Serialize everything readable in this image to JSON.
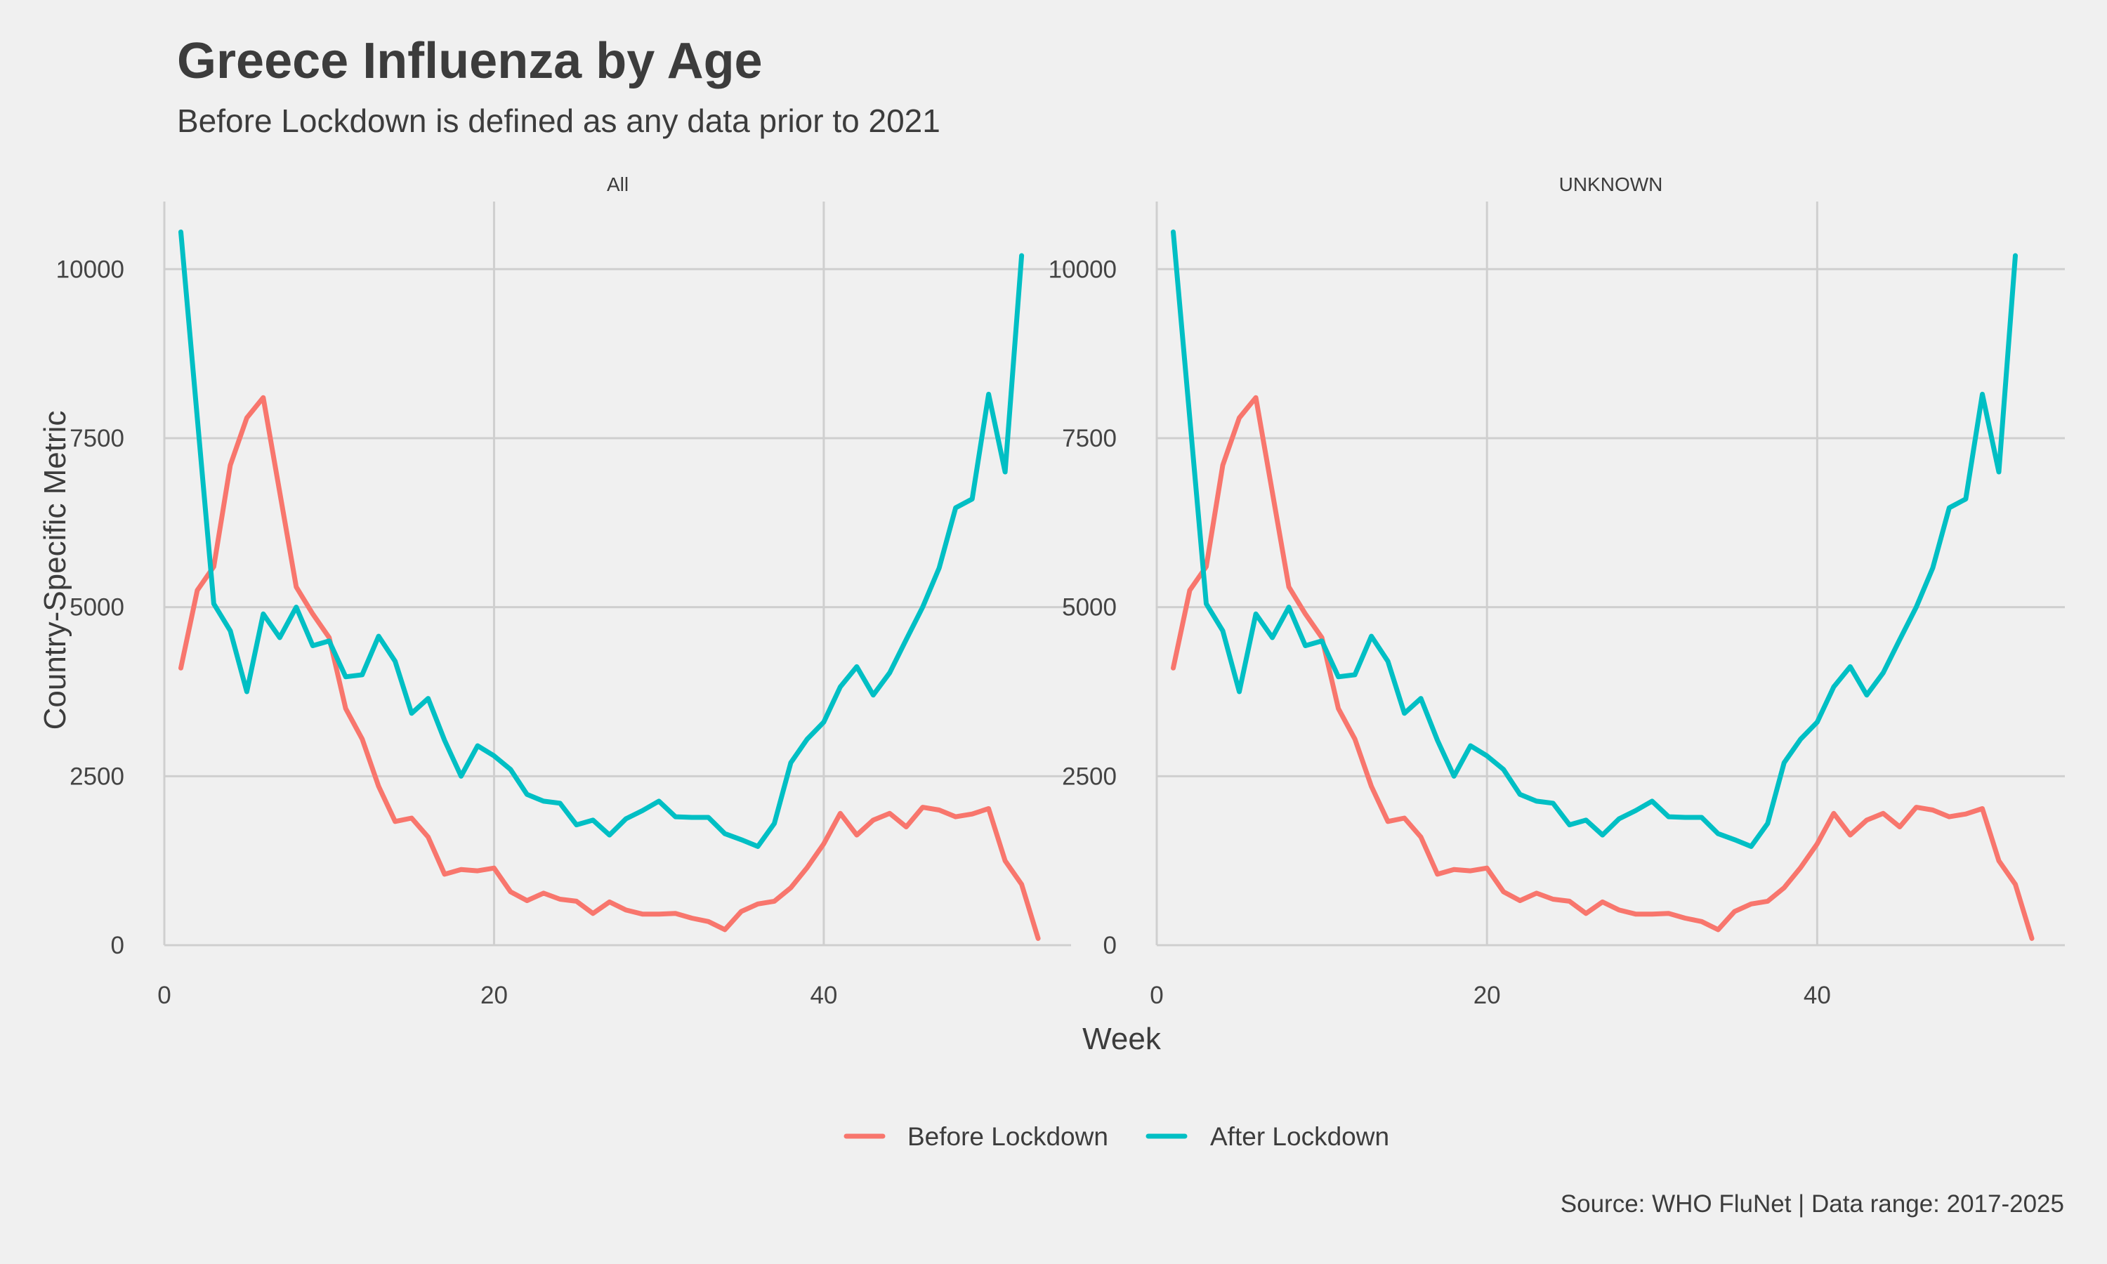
{
  "title": "Greece Influenza by Age",
  "subtitle": "Before Lockdown is defined as any data prior to 2021",
  "caption": "Source: WHO FluNet | Data range: 2017-2025",
  "colors": {
    "before": "#F8766D",
    "after": "#00BFC4",
    "grid": "#cfcfcf",
    "background": "#f0f0f0"
  },
  "chart_data": {
    "type": "line",
    "xlabel": "Week",
    "ylabel": "Country-Specific Metric",
    "xlim": [
      0,
      55
    ],
    "ylim": [
      0,
      11000
    ],
    "x_ticks": [
      0,
      20,
      40
    ],
    "y_ticks": [
      0,
      2500,
      5000,
      7500,
      10000
    ],
    "legend_position": "bottom",
    "legend": [
      "Before Lockdown",
      "After Lockdown"
    ],
    "panels": [
      {
        "label": "All",
        "series": [
          {
            "name": "Before Lockdown",
            "color": "#F8766D",
            "x": [
              1,
              2,
              3,
              4,
              5,
              6,
              7,
              8,
              9,
              10,
              11,
              12,
              13,
              14,
              15,
              16,
              17,
              18,
              19,
              20,
              21,
              22,
              23,
              24,
              25,
              26,
              27,
              28,
              29,
              30,
              31,
              32,
              33,
              34,
              35,
              36,
              37,
              38,
              39,
              40,
              41,
              42,
              43,
              44,
              45,
              46,
              47,
              48,
              49,
              50,
              51,
              52,
              53
            ],
            "values": [
              4100,
              5250,
              5600,
              7100,
              7800,
              8100,
              6700,
              5300,
              4900,
              4550,
              3500,
              3050,
              2350,
              1830,
              1880,
              1600,
              1050,
              1120,
              1100,
              1140,
              790,
              660,
              770,
              680,
              650,
              470,
              640,
              520,
              460,
              460,
              470,
              400,
              350,
              230,
              500,
              610,
              650,
              850,
              1150,
              1500,
              1950,
              1630,
              1850,
              1950,
              1750,
              2040,
              2000,
              1900,
              1940,
              2020,
              1250,
              900,
              100
            ]
          },
          {
            "name": "After Lockdown",
            "color": "#00BFC4",
            "x": [
              1,
              2,
              3,
              4,
              5,
              6,
              7,
              8,
              9,
              10,
              11,
              12,
              13,
              14,
              15,
              16,
              17,
              18,
              19,
              20,
              21,
              22,
              23,
              24,
              25,
              26,
              27,
              28,
              29,
              30,
              31,
              32,
              33,
              34,
              35,
              36,
              37,
              38,
              39,
              40,
              41,
              42,
              43,
              44,
              45,
              46,
              47,
              48,
              49,
              50,
              51,
              52
            ],
            "values": [
              10550,
              7800,
              5050,
              4650,
              3750,
              4900,
              4550,
              5000,
              4430,
              4500,
              3970,
              4000,
              4570,
              4200,
              3430,
              3650,
              3030,
              2500,
              2950,
              2800,
              2600,
              2230,
              2130,
              2100,
              1780,
              1850,
              1630,
              1870,
              1990,
              2130,
              1900,
              1890,
              1890,
              1650,
              1560,
              1460,
              1800,
              2700,
              3050,
              3300,
              3820,
              4120,
              3700,
              4030,
              4520,
              5000,
              5580,
              6470,
              6600,
              8150,
              7000,
              10200
            ]
          }
        ]
      },
      {
        "label": "UNKNOWN",
        "series": [
          {
            "name": "Before Lockdown",
            "color": "#F8766D",
            "x": [
              1,
              2,
              3,
              4,
              5,
              6,
              7,
              8,
              9,
              10,
              11,
              12,
              13,
              14,
              15,
              16,
              17,
              18,
              19,
              20,
              21,
              22,
              23,
              24,
              25,
              26,
              27,
              28,
              29,
              30,
              31,
              32,
              33,
              34,
              35,
              36,
              37,
              38,
              39,
              40,
              41,
              42,
              43,
              44,
              45,
              46,
              47,
              48,
              49,
              50,
              51,
              52,
              53
            ],
            "values": [
              4100,
              5250,
              5600,
              7100,
              7800,
              8100,
              6700,
              5300,
              4900,
              4550,
              3500,
              3050,
              2350,
              1830,
              1880,
              1600,
              1050,
              1120,
              1100,
              1140,
              790,
              660,
              770,
              680,
              650,
              470,
              640,
              520,
              460,
              460,
              470,
              400,
              350,
              230,
              500,
              610,
              650,
              850,
              1150,
              1500,
              1950,
              1630,
              1850,
              1950,
              1750,
              2040,
              2000,
              1900,
              1940,
              2020,
              1250,
              900,
              100
            ]
          },
          {
            "name": "After Lockdown",
            "color": "#00BFC4",
            "x": [
              1,
              2,
              3,
              4,
              5,
              6,
              7,
              8,
              9,
              10,
              11,
              12,
              13,
              14,
              15,
              16,
              17,
              18,
              19,
              20,
              21,
              22,
              23,
              24,
              25,
              26,
              27,
              28,
              29,
              30,
              31,
              32,
              33,
              34,
              35,
              36,
              37,
              38,
              39,
              40,
              41,
              42,
              43,
              44,
              45,
              46,
              47,
              48,
              49,
              50,
              51,
              52
            ],
            "values": [
              10550,
              7800,
              5050,
              4650,
              3750,
              4900,
              4550,
              5000,
              4430,
              4500,
              3970,
              4000,
              4570,
              4200,
              3430,
              3650,
              3030,
              2500,
              2950,
              2800,
              2600,
              2230,
              2130,
              2100,
              1780,
              1850,
              1630,
              1870,
              1990,
              2130,
              1900,
              1890,
              1890,
              1650,
              1560,
              1460,
              1800,
              2700,
              3050,
              3300,
              3820,
              4120,
              3700,
              4030,
              4520,
              5000,
              5580,
              6470,
              6600,
              8150,
              7000,
              10200
            ]
          }
        ]
      }
    ]
  }
}
